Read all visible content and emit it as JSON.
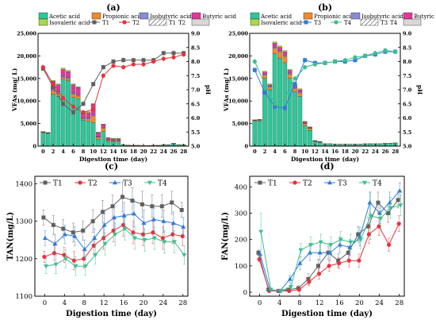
{
  "colors": {
    "acetic": "#2ec79a",
    "propionic": "#f08a2e",
    "isobutyric": "#8a8ad4",
    "butyric": "#e0389a",
    "isovaleric": "#a8d84c",
    "T1": "#606060",
    "T2": "#e8323c",
    "T3": "#2f7bd8",
    "T4": "#3dbf8c"
  },
  "chart_data": [
    {
      "type": "bar",
      "panel_label": "(a)",
      "xlabel": "Digestion time (day)",
      "ylabel": "VFAs (mg/ L)",
      "y2label": "pH",
      "ylim": [
        0,
        25000
      ],
      "y2lim": [
        5.0,
        9.0
      ],
      "xticks": [
        0,
        2,
        4,
        6,
        8,
        10,
        12,
        14,
        16,
        18,
        20,
        22,
        24,
        26,
        28
      ],
      "yticks": [
        0,
        5000,
        10000,
        15000,
        20000,
        25000
      ],
      "y2ticks": [
        5.0,
        5.5,
        6.0,
        6.5,
        7.0,
        7.5,
        8.0,
        8.5,
        9.0
      ],
      "legend_components": [
        "Acetic acid",
        "Propionic acid",
        "Isobutyric acid",
        "Butyric acid",
        "Isovaleric acid"
      ],
      "legend_series": [
        "T1",
        "T2"
      ],
      "legend_boxes": [
        "T1",
        "T2"
      ],
      "bars": {
        "days": [
          0,
          1,
          2,
          3,
          4,
          5,
          6,
          7,
          8,
          9,
          10,
          11,
          12,
          13,
          14,
          15,
          16,
          17,
          18,
          19,
          20,
          21,
          22,
          23,
          24,
          25,
          26,
          27,
          28
        ],
        "acetic": [
          3000,
          2800,
          11500,
          11000,
          14800,
          14500,
          10800,
          10500,
          5800,
          5500,
          5200,
          1500,
          3200,
          1000,
          900,
          900,
          300,
          200,
          150,
          150,
          100,
          100,
          150,
          150,
          300,
          300,
          600,
          300,
          300
        ],
        "propionic": [
          100,
          100,
          800,
          700,
          400,
          400,
          700,
          600,
          300,
          500,
          1500,
          500,
          800,
          300,
          300,
          300,
          50,
          50,
          50,
          50,
          50,
          50,
          50,
          50,
          50,
          50,
          50,
          50,
          50
        ],
        "isobutyric": [
          50,
          50,
          300,
          300,
          300,
          300,
          300,
          300,
          200,
          200,
          300,
          100,
          200,
          100,
          100,
          100,
          0,
          0,
          0,
          0,
          0,
          0,
          0,
          0,
          0,
          0,
          0,
          0,
          0
        ],
        "butyric": [
          50,
          50,
          1800,
          1600,
          1500,
          1300,
          1800,
          1600,
          1000,
          1200,
          2300,
          900,
          600,
          400,
          300,
          300,
          0,
          0,
          0,
          0,
          0,
          0,
          0,
          0,
          0,
          0,
          0,
          0,
          0
        ],
        "isovaleric": [
          50,
          50,
          200,
          200,
          300,
          300,
          200,
          200,
          200,
          200,
          200,
          100,
          100,
          100,
          100,
          100,
          0,
          0,
          0,
          0,
          0,
          0,
          0,
          0,
          0,
          0,
          0,
          0,
          0
        ]
      },
      "ph_series": [
        {
          "name": "T1",
          "x": [
            0,
            2,
            4,
            6,
            8,
            10,
            12,
            14,
            16,
            18,
            20,
            22,
            24,
            26,
            28
          ],
          "y": [
            7.75,
            7.1,
            6.5,
            6.2,
            6.5,
            7.2,
            7.8,
            8.0,
            8.05,
            8.05,
            8.05,
            8.05,
            8.3,
            8.3,
            8.3
          ]
        },
        {
          "name": "T2",
          "x": [
            0,
            2,
            4,
            6,
            8,
            10,
            12,
            14,
            16,
            18,
            20,
            22,
            24,
            26,
            28
          ],
          "y": [
            7.8,
            7.2,
            6.7,
            6.4,
            6.2,
            6.3,
            7.5,
            7.85,
            7.8,
            7.9,
            7.9,
            8.0,
            8.1,
            8.15,
            8.25
          ]
        }
      ]
    },
    {
      "type": "bar",
      "panel_label": "(b)",
      "xlabel": "Digestion time (day)",
      "ylabel": "VFAs (mg/ L)",
      "y2label": "pH",
      "ylim": [
        0,
        25000
      ],
      "y2lim": [
        5.0,
        9.0
      ],
      "xticks": [
        0,
        2,
        4,
        6,
        8,
        10,
        12,
        14,
        16,
        18,
        20,
        22,
        24,
        26,
        28
      ],
      "yticks": [
        0,
        5000,
        10000,
        15000,
        20000,
        25000
      ],
      "y2ticks": [
        5.0,
        5.5,
        6.0,
        6.5,
        7.0,
        7.5,
        8.0,
        8.5,
        9.0
      ],
      "legend_components": [
        "Acetic acid",
        "Propionic acid",
        "Isobutyric acid",
        "Butyric acid",
        "Isovaleric acid"
      ],
      "legend_series": [
        "T3",
        "T4"
      ],
      "legend_boxes": [
        "T3",
        "T4"
      ],
      "bars": {
        "days": [
          0,
          1,
          2,
          3,
          4,
          5,
          6,
          7,
          8,
          9,
          10,
          11,
          12,
          13,
          14,
          15,
          16,
          17,
          18,
          19,
          20,
          21,
          22,
          23,
          24,
          25,
          26,
          27,
          28
        ],
        "acetic": [
          5500,
          5600,
          15000,
          12500,
          20500,
          19500,
          18500,
          15000,
          12000,
          11000,
          4500,
          3500,
          1000,
          800,
          500,
          500,
          400,
          400,
          400,
          400,
          400,
          400,
          500,
          500,
          500,
          500,
          600,
          600,
          700
        ],
        "propionic": [
          200,
          200,
          800,
          600,
          1200,
          1400,
          1400,
          1000,
          800,
          800,
          500,
          400,
          100,
          100,
          50,
          50,
          50,
          50,
          50,
          50,
          50,
          50,
          50,
          50,
          50,
          50,
          50,
          50,
          50
        ],
        "isobutyric": [
          50,
          50,
          200,
          200,
          300,
          300,
          300,
          200,
          200,
          200,
          100,
          100,
          50,
          50,
          0,
          0,
          0,
          0,
          0,
          0,
          0,
          0,
          0,
          0,
          0,
          0,
          0,
          0,
          0
        ],
        "butyric": [
          50,
          50,
          400,
          300,
          800,
          700,
          700,
          600,
          500,
          500,
          300,
          200,
          50,
          50,
          0,
          0,
          0,
          0,
          0,
          0,
          0,
          0,
          0,
          0,
          0,
          0,
          0,
          0,
          0
        ],
        "isovaleric": [
          50,
          50,
          200,
          200,
          300,
          300,
          300,
          200,
          200,
          200,
          100,
          100,
          50,
          50,
          0,
          0,
          0,
          0,
          0,
          0,
          0,
          0,
          0,
          0,
          0,
          0,
          0,
          0,
          0
        ]
      },
      "ph_series": [
        {
          "name": "T3",
          "x": [
            0,
            2,
            4,
            6,
            8,
            10,
            12,
            14,
            16,
            18,
            20,
            22,
            24,
            26,
            28
          ],
          "y": [
            7.7,
            6.9,
            6.4,
            6.35,
            7.2,
            8.05,
            7.95,
            7.95,
            8.0,
            8.0,
            8.05,
            8.2,
            8.25,
            8.35,
            8.35
          ]
        },
        {
          "name": "T4",
          "x": [
            0,
            2,
            4,
            6,
            8,
            10,
            12,
            14,
            16,
            18,
            20,
            22,
            24,
            26,
            28
          ],
          "y": [
            8.0,
            7.2,
            6.5,
            6.7,
            7.4,
            7.8,
            7.9,
            7.95,
            8.0,
            8.05,
            8.15,
            8.2,
            8.3,
            8.4,
            8.35
          ]
        }
      ]
    },
    {
      "type": "line",
      "panel_label": "(c)",
      "xlabel": "Digestion time (day)",
      "ylabel": "TAN(mg/L)",
      "ylim": [
        1100,
        1420
      ],
      "xlim": [
        -2,
        29
      ],
      "xticks": [
        0,
        4,
        8,
        12,
        16,
        20,
        24,
        28
      ],
      "yticks": [
        1100,
        1200,
        1300,
        1400
      ],
      "x": [
        0,
        2,
        4,
        6,
        8,
        10,
        12,
        14,
        16,
        18,
        20,
        22,
        24,
        26,
        28
      ],
      "series": [
        {
          "name": "T1",
          "values": [
            1310,
            1290,
            1280,
            1270,
            1275,
            1300,
            1325,
            1340,
            1365,
            1355,
            1345,
            1340,
            1340,
            1350,
            1330
          ],
          "err": [
            20,
            25,
            25,
            25,
            25,
            30,
            30,
            30,
            40,
            35,
            35,
            30,
            30,
            30,
            20
          ]
        },
        {
          "name": "T2",
          "values": [
            1205,
            1215,
            1210,
            1195,
            1200,
            1235,
            1255,
            1275,
            1290,
            1270,
            1265,
            1270,
            1255,
            1265,
            1260
          ],
          "err": [
            15,
            20,
            20,
            25,
            25,
            25,
            30,
            30,
            30,
            30,
            30,
            30,
            30,
            25,
            25
          ]
        },
        {
          "name": "T3",
          "values": [
            1255,
            1240,
            1265,
            1260,
            1225,
            1255,
            1290,
            1310,
            1315,
            1320,
            1295,
            1305,
            1300,
            1295,
            1285
          ],
          "err": [
            20,
            25,
            25,
            25,
            25,
            25,
            30,
            30,
            35,
            35,
            35,
            30,
            30,
            30,
            25
          ]
        },
        {
          "name": "T4",
          "values": [
            1180,
            1185,
            1200,
            1180,
            1180,
            1210,
            1240,
            1265,
            1280,
            1255,
            1250,
            1255,
            1245,
            1245,
            1210
          ],
          "err": [
            20,
            25,
            25,
            25,
            25,
            25,
            30,
            30,
            30,
            30,
            30,
            30,
            30,
            30,
            25
          ]
        }
      ]
    },
    {
      "type": "line",
      "panel_label": "(d)",
      "xlabel": "Digestion time (day)",
      "ylabel": "FAN(mg/L)",
      "ylim": [
        -15,
        440
      ],
      "xlim": [
        -2,
        29
      ],
      "xticks": [
        0,
        4,
        8,
        12,
        16,
        20,
        24,
        28
      ],
      "yticks": [
        0,
        100,
        200,
        300,
        400
      ],
      "x": [
        0,
        2,
        4,
        6,
        8,
        10,
        12,
        14,
        16,
        18,
        20,
        22,
        24,
        26,
        28
      ],
      "series": [
        {
          "name": "T1",
          "values": [
            150,
            10,
            5,
            10,
            15,
            50,
            100,
            150,
            120,
            150,
            220,
            250,
            340,
            300,
            350
          ],
          "err": [
            10,
            5,
            5,
            5,
            10,
            20,
            25,
            25,
            25,
            25,
            30,
            35,
            40,
            35,
            30
          ]
        },
        {
          "name": "T2",
          "values": [
            125,
            5,
            5,
            5,
            10,
            40,
            70,
            100,
            110,
            120,
            120,
            220,
            250,
            180,
            260
          ],
          "err": [
            10,
            5,
            5,
            5,
            10,
            15,
            20,
            20,
            20,
            25,
            25,
            35,
            35,
            25,
            30
          ]
        },
        {
          "name": "T3",
          "values": [
            145,
            10,
            5,
            50,
            110,
            150,
            150,
            150,
            180,
            170,
            210,
            340,
            300,
            340,
            385
          ],
          "err": [
            10,
            5,
            5,
            15,
            25,
            30,
            30,
            30,
            30,
            30,
            35,
            40,
            40,
            40,
            30
          ]
        },
        {
          "name": "T4",
          "values": [
            230,
            10,
            5,
            20,
            160,
            180,
            190,
            180,
            200,
            190,
            200,
            290,
            280,
            320,
            330
          ],
          "err": [
            70,
            5,
            5,
            10,
            25,
            30,
            30,
            30,
            30,
            30,
            35,
            90,
            40,
            40,
            40
          ]
        }
      ]
    }
  ]
}
